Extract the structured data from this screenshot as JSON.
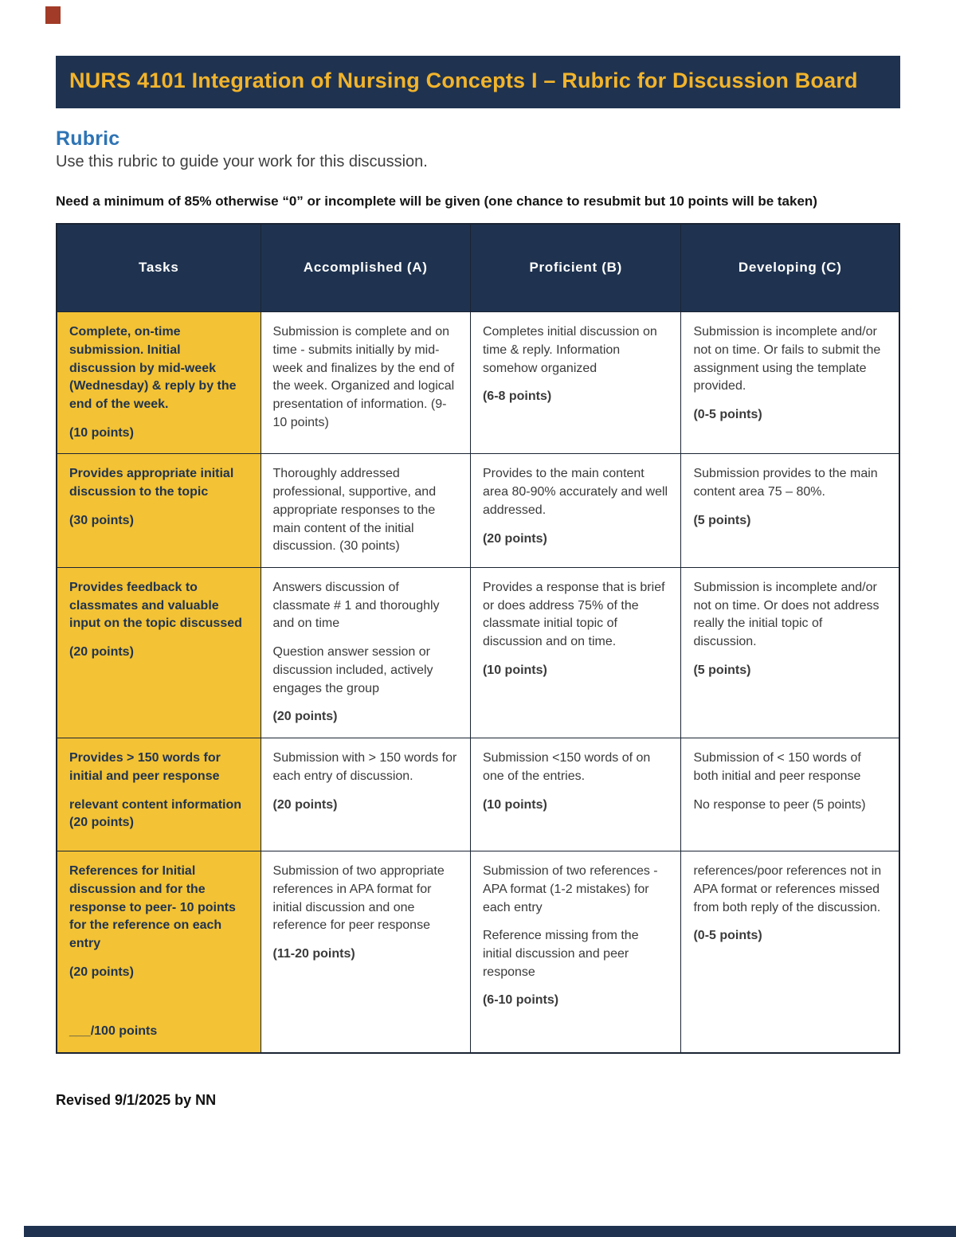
{
  "page": {
    "title": "NURS 4101 Integration of Nursing Concepts I – Rubric for Discussion Board",
    "section_heading": "Rubric",
    "intro": "Use this rubric to guide your work for this discussion.",
    "note": "Need a minimum of 85% otherwise “0” or incomplete will be given (one chance to resubmit but 10 points will be taken)",
    "footer": "Revised 9/1/2025 by NN"
  },
  "colors": {
    "navy": "#1F3350",
    "title_gold": "#F2B42C",
    "task_cell_yellow": "#F3C235",
    "heading_blue": "#2E74B5",
    "accent_red": "#A23B27"
  },
  "table": {
    "headers": [
      "Tasks",
      "Accomplished (A)",
      "Proficient (B)",
      "Developing (C)"
    ],
    "rows": [
      {
        "task": [
          "Complete, on-time submission. Initial discussion by mid-week (Wednesday) & reply by the end of the week.",
          "(10 points)"
        ],
        "accomplished": [
          "Submission is complete and on time - submits initially by mid-week and finalizes by the end of the week. Organized and logical presentation of information. (9-10 points)"
        ],
        "proficient": [
          "Completes initial discussion on time & reply. Information somehow organized",
          "(6-8 points)"
        ],
        "developing": [
          "Submission is incomplete and/or not on time. Or fails to submit the assignment using the template provided.",
          "(0-5 points)"
        ]
      },
      {
        "task": [
          "Provides appropriate initial discussion to the topic",
          "(30 points)"
        ],
        "accomplished": [
          "Thoroughly addressed professional, supportive, and appropriate responses to the main content of the initial discussion. (30 points)"
        ],
        "proficient": [
          "Provides to the main content area 80-90% accurately and well addressed.",
          "(20 points)"
        ],
        "developing": [
          "Submission provides to the main content area 75 – 80%.",
          "(5 points)"
        ]
      },
      {
        "task": [
          "Provides feedback to classmates and valuable input on the topic discussed",
          "(20 points)"
        ],
        "accomplished": [
          "Answers discussion of classmate # 1 and thoroughly and on time",
          "Question answer session or discussion included, actively engages the group",
          "(20 points)"
        ],
        "proficient": [
          "Provides a response that is brief or does address 75% of the classmate initial topic of discussion and on time.",
          "(10 points)"
        ],
        "developing": [
          "Submission is incomplete and/or not on time.  Or does not address really the initial topic of discussion.",
          "(5 points)"
        ]
      },
      {
        "task": [
          "Provides > 150 words for initial and peer response",
          "relevant content information (20 points)"
        ],
        "accomplished": [
          "Submission with > 150 words for each entry of discussion.",
          "(20 points)"
        ],
        "proficient": [
          "Submission <150 words of on one of the entries.",
          "(10 points)"
        ],
        "developing": [
          "Submission of < 150 words of both initial and peer response",
          "No response to peer (5 points)"
        ]
      },
      {
        "task": [
          "References for Initial discussion and for the response to peer- 10 points for the reference on each entry",
          "(20 points)",
          "___/100 points"
        ],
        "accomplished": [
          "Submission of two appropriate references in APA format for initial discussion and one reference for peer response",
          "(11-20 points)"
        ],
        "proficient": [
          "Submission of two references - APA format (1-2 mistakes) for each entry",
          "Reference missing from the initial discussion and peer response",
          "(6-10 points)"
        ],
        "developing": [
          "references/poor references not in APA format or references missed from both reply of the discussion.",
          "(0-5 points)"
        ]
      }
    ]
  }
}
